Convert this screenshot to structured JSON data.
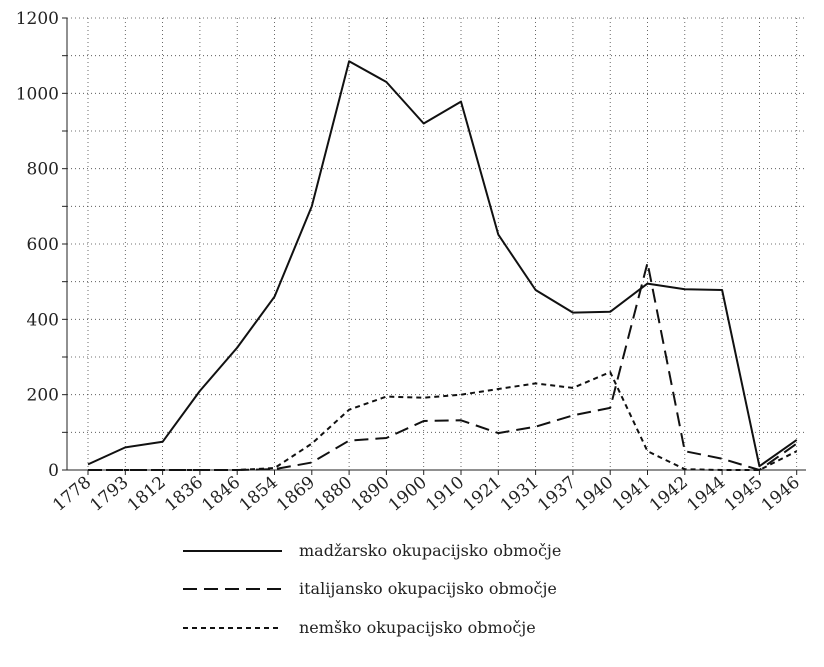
{
  "chart_data": {
    "type": "line",
    "title": "",
    "xlabel": "",
    "ylabel": "",
    "categories": [
      "1778",
      "1793",
      "1812",
      "1836",
      "1846",
      "1854",
      "1869",
      "1880",
      "1890",
      "1900",
      "1910",
      "1921",
      "1931",
      "1937",
      "1940",
      "1941",
      "1942",
      "1944",
      "1945",
      "1946"
    ],
    "ylim": [
      0,
      1200
    ],
    "yticks": [
      0,
      200,
      400,
      600,
      800,
      1000,
      1200
    ],
    "grid": "dotted",
    "legend_placement": "bottom",
    "series": [
      {
        "name": "madžarsko okupacijsko območje",
        "dash": "solid",
        "values": [
          15,
          60,
          75,
          210,
          325,
          460,
          700,
          1085,
          1030,
          920,
          978,
          625,
          478,
          418,
          420,
          495,
          480,
          478,
          10,
          80
        ]
      },
      {
        "name": "italijansko okupacijsko območje",
        "dash": "long-dash",
        "values": [
          0,
          0,
          0,
          0,
          0,
          2,
          20,
          78,
          85,
          130,
          132,
          98,
          115,
          145,
          165,
          550,
          50,
          30,
          0,
          70
        ]
      },
      {
        "name": "nemško okupacijsko območje",
        "dash": "short-dash",
        "values": [
          0,
          0,
          0,
          0,
          0,
          5,
          70,
          160,
          195,
          192,
          200,
          215,
          230,
          218,
          260,
          50,
          2,
          0,
          0,
          50
        ]
      }
    ]
  }
}
